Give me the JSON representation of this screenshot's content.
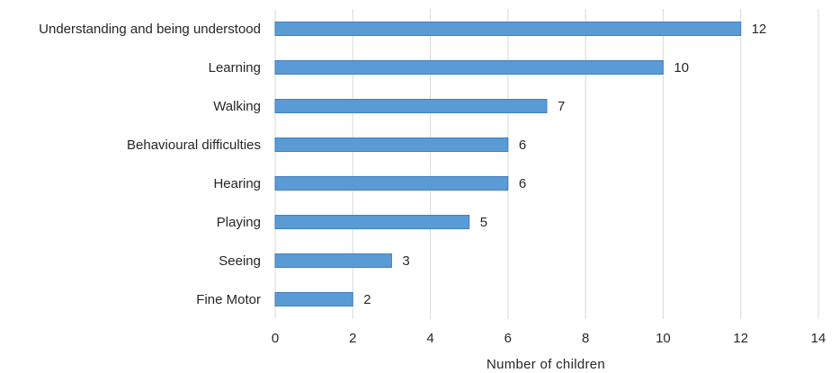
{
  "chart_data": {
    "type": "bar",
    "orientation": "horizontal",
    "title": "",
    "xlabel": "Number  of children",
    "ylabel": "",
    "categories": [
      "Understanding and being understood",
      "Learning",
      "Walking",
      "Behavioural difficulties",
      "Hearing",
      "Playing",
      "Seeing",
      "Fine Motor"
    ],
    "values": [
      12,
      10,
      7,
      6,
      6,
      5,
      3,
      2
    ],
    "xlim": [
      0,
      14
    ],
    "xticks": [
      0,
      2,
      4,
      6,
      8,
      10,
      12,
      14
    ],
    "grid": true,
    "legend": "none",
    "data_labels": true,
    "bar_color": "#5b9bd5"
  }
}
